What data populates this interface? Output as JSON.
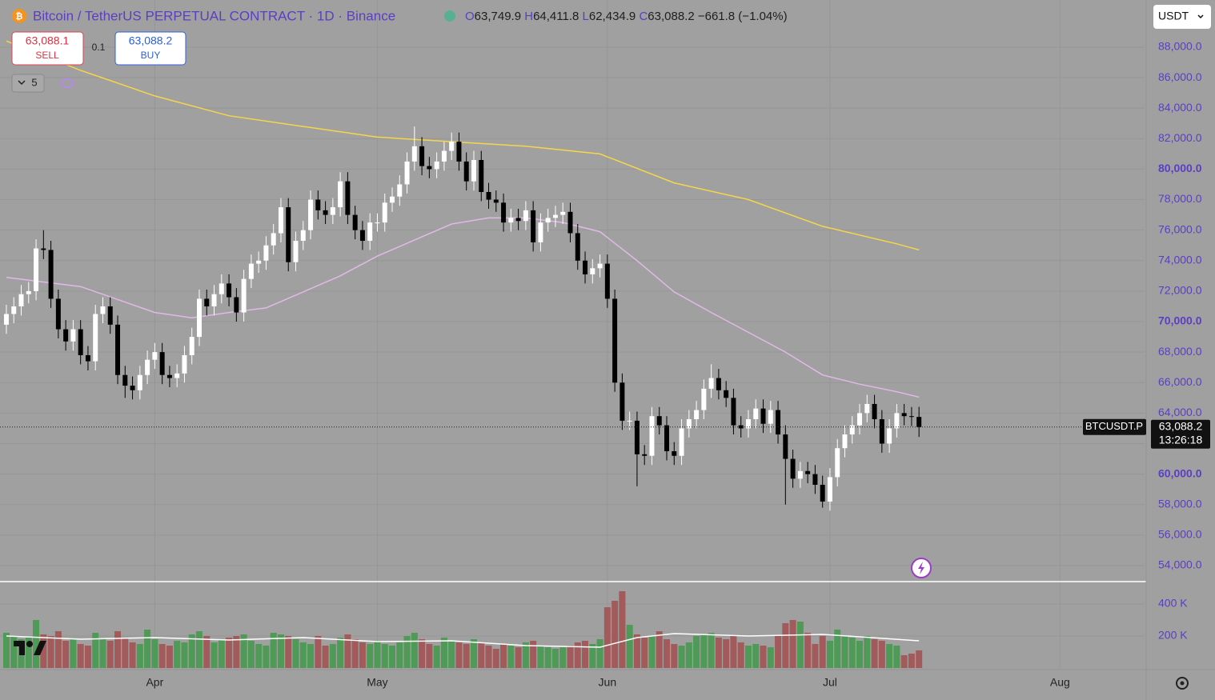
{
  "chart_data": {
    "type": "candlestick",
    "title": "Bitcoin / TetherUS PERPETUAL CONTRACT · 1D · Binance",
    "ohlc_legend": [
      {
        "label": "O",
        "value": "63,749.9"
      },
      {
        "label": "H",
        "value": "64,411.8"
      },
      {
        "label": "L",
        "value": "62,434.9"
      },
      {
        "label": "C",
        "value": "63,088.2"
      }
    ],
    "change_label": "−661.8 (−1.04%)",
    "sell": {
      "price": "63,088.1",
      "label": "SELL"
    },
    "spread": "0.1",
    "buy": {
      "price": "63,088.2",
      "label": "BUY"
    },
    "currency": "USDT",
    "indicator_count": "5",
    "symbol_label": "BTCUSDT.P",
    "last_price_label": "63,088.2",
    "countdown": "13:26:18",
    "colors": {
      "up": "#ffffff",
      "down": "#000000",
      "volume_up": "#4e9a56",
      "volume_down": "#a25a5a"
    },
    "xlim": [
      -0.86,
      153.4
    ],
    "xticks": [
      {
        "value": 20,
        "label": "Apr"
      },
      {
        "value": 50,
        "label": "May"
      },
      {
        "value": 81,
        "label": "Jun"
      },
      {
        "value": 111,
        "label": "Jul"
      },
      {
        "value": 142,
        "label": "Aug"
      }
    ],
    "ylim": [
      52950,
      90830
    ],
    "yticks": [
      {
        "value": 54000,
        "label": "54,000.0"
      },
      {
        "value": 56000,
        "label": "56,000.0"
      },
      {
        "value": 58000,
        "label": "58,000.0"
      },
      {
        "value": 60000,
        "label": "60,000.0"
      },
      {
        "value": 62000,
        "label": "62,000.0"
      },
      {
        "value": 64000,
        "label": "64,000.0"
      },
      {
        "value": 66000,
        "label": "66,000.0"
      },
      {
        "value": 68000,
        "label": "68,000.0"
      },
      {
        "value": 70000,
        "label": "70,000.0"
      },
      {
        "value": 72000,
        "label": "72,000.0"
      },
      {
        "value": 74000,
        "label": "74,000.0"
      },
      {
        "value": 76000,
        "label": "76,000.0"
      },
      {
        "value": 78000,
        "label": "78,000.0"
      },
      {
        "value": 80000,
        "label": "80,000.0"
      },
      {
        "value": 82000,
        "label": "82,000.0"
      },
      {
        "value": 84000,
        "label": "84,000.0"
      },
      {
        "value": 86000,
        "label": "86,000.0"
      },
      {
        "value": 88000,
        "label": "88,000.0"
      }
    ],
    "grid": true,
    "open": [
      69800,
      70500,
      71000,
      71800,
      72000,
      74800,
      74700,
      71500,
      69500,
      68700,
      69500,
      67800,
      67400,
      70500,
      71000,
      69800,
      66500,
      65800,
      65500,
      66500,
      67500,
      68000,
      66500,
      66300,
      66600,
      67800,
      69000,
      71500,
      71000,
      71800,
      72500,
      71600,
      70600,
      72800,
      73800,
      74000,
      75000,
      75800,
      77500,
      73900,
      75300,
      76000,
      78000,
      77300,
      77000,
      77500,
      79200,
      77000,
      76000,
      75300,
      76500,
      76500,
      77800,
      78200,
      79000,
      80500,
      81500,
      80200,
      80000,
      80500,
      81200,
      81800,
      80500,
      79200,
      80600,
      78500,
      78000,
      77800,
      76500,
      76800,
      76600,
      77300,
      75200,
      76500,
      76800,
      77000,
      77200,
      75800,
      74000,
      73100,
      73500,
      73800,
      71500,
      66000,
      63500,
      63500,
      61300,
      61200,
      63800,
      63200,
      61500,
      61200,
      63000,
      63600,
      64200,
      65600,
      66300,
      65500,
      65000,
      63200,
      63000,
      63600,
      64300,
      63300,
      64200,
      62600,
      61000,
      59700,
      60200,
      60000,
      59300,
      58200,
      59800,
      61700,
      62600,
      63200,
      64000,
      64600,
      63600,
      62000,
      63000,
      64000,
      63800,
      63749.9
    ],
    "high": [
      71100,
      71600,
      72400,
      72600,
      75400,
      76000,
      75300,
      72100,
      70100,
      70100,
      70100,
      68400,
      71100,
      71600,
      71600,
      70400,
      67100,
      66400,
      67100,
      68100,
      68600,
      68600,
      67100,
      67200,
      68400,
      69600,
      72100,
      72100,
      72400,
      73100,
      73100,
      72200,
      73400,
      74400,
      74600,
      75600,
      76400,
      78100,
      78100,
      75900,
      76600,
      78600,
      78600,
      77900,
      78100,
      79800,
      79800,
      77600,
      76600,
      77100,
      77100,
      78400,
      78800,
      79600,
      81100,
      82800,
      82100,
      80800,
      81100,
      81800,
      82400,
      82400,
      81100,
      81200,
      81200,
      79100,
      78600,
      78400,
      77400,
      77400,
      77900,
      77900,
      77100,
      77400,
      77600,
      77800,
      77800,
      76400,
      74600,
      74100,
      74400,
      74400,
      72100,
      66600,
      64100,
      64100,
      61900,
      64400,
      64400,
      63800,
      62100,
      63600,
      64200,
      64800,
      66200,
      67200,
      66900,
      66100,
      65600,
      63800,
      64200,
      64900,
      64900,
      64800,
      64800,
      63200,
      61600,
      60800,
      60800,
      60600,
      59900,
      60400,
      62300,
      63200,
      63800,
      64600,
      65200,
      65200,
      64200,
      63600,
      64600,
      64600,
      64400,
      64411.8
    ],
    "low": [
      69200,
      69900,
      70400,
      71200,
      71400,
      74100,
      70900,
      68900,
      68100,
      68100,
      67200,
      66800,
      66800,
      69900,
      69200,
      65900,
      65000,
      64900,
      64900,
      65900,
      66900,
      65900,
      65700,
      65700,
      66000,
      67200,
      68400,
      70400,
      70400,
      71200,
      71000,
      70000,
      70000,
      72200,
      73200,
      73400,
      74400,
      75200,
      73300,
      73300,
      74700,
      75400,
      76700,
      76400,
      76400,
      76900,
      76400,
      75400,
      74700,
      74700,
      75900,
      75900,
      77200,
      77600,
      78400,
      79900,
      79600,
      79400,
      79400,
      79900,
      80600,
      79900,
      78600,
      78600,
      77900,
      77400,
      77200,
      75900,
      75900,
      76000,
      76000,
      74600,
      74600,
      75900,
      76200,
      76400,
      75200,
      73400,
      72500,
      72500,
      72900,
      70900,
      65400,
      62900,
      62900,
      59200,
      60600,
      60600,
      62600,
      60900,
      60600,
      60600,
      62400,
      63000,
      63600,
      65000,
      64900,
      64400,
      62600,
      62400,
      62400,
      63000,
      62700,
      62700,
      62000,
      58000,
      59100,
      59100,
      59400,
      58700,
      57800,
      57600,
      59200,
      61100,
      62000,
      62600,
      63400,
      63000,
      61400,
      61400,
      62400,
      63200,
      63150,
      62434.9
    ],
    "close": [
      70500,
      71000,
      71800,
      72000,
      74800,
      74700,
      71500,
      69500,
      68700,
      69500,
      67800,
      67400,
      70500,
      71000,
      69800,
      66500,
      65800,
      65500,
      66500,
      67500,
      68000,
      66500,
      66300,
      66600,
      67800,
      69000,
      71500,
      71000,
      71800,
      72500,
      71600,
      70600,
      72800,
      73800,
      74000,
      75000,
      75800,
      77500,
      73900,
      75300,
      76000,
      78000,
      77300,
      77000,
      77500,
      79200,
      77000,
      76000,
      75300,
      76500,
      76500,
      77800,
      78200,
      79000,
      80500,
      81500,
      80200,
      80000,
      80500,
      81200,
      81800,
      80500,
      79200,
      80600,
      78500,
      78000,
      77800,
      76500,
      76800,
      76600,
      77300,
      75200,
      76500,
      76800,
      77000,
      77200,
      75800,
      74000,
      73100,
      73500,
      73800,
      71500,
      66000,
      63500,
      63500,
      61300,
      61200,
      63800,
      63200,
      61500,
      61200,
      63000,
      63600,
      64200,
      65600,
      66300,
      65500,
      65000,
      63200,
      63000,
      63600,
      64300,
      63300,
      64200,
      62600,
      61000,
      59700,
      60200,
      60000,
      59300,
      58200,
      59800,
      61700,
      62600,
      63200,
      64000,
      64600,
      63600,
      62000,
      63000,
      64000,
      63800,
      63750,
      63088.2
    ],
    "lines": [
      {
        "color": "#f5d64a",
        "x": [
          0,
          10,
          20,
          30,
          40,
          50,
          60,
          70,
          80,
          90,
          100,
          110,
          120,
          123
        ],
        "values": [
          88400,
          86480,
          84800,
          83500,
          82800,
          82100,
          81800,
          81500,
          81000,
          79100,
          78000,
          76250,
          75100,
          74700
        ]
      },
      {
        "color": "#e2b8e8",
        "x": [
          0,
          10,
          20,
          25,
          30,
          35,
          40,
          45,
          50,
          55,
          60,
          65,
          70,
          75,
          80,
          85,
          90,
          95,
          100,
          105,
          110,
          115,
          120,
          123
        ],
        "values": [
          72900,
          72300,
          70600,
          70250,
          70600,
          70900,
          71950,
          73000,
          74300,
          75350,
          76400,
          76800,
          76800,
          76500,
          75900,
          74000,
          71950,
          70600,
          69300,
          68000,
          66500,
          65900,
          65400,
          65050
        ]
      }
    ],
    "volume": {
      "ylim": [
        0,
        535000
      ],
      "yticks": [
        {
          "value": 200000,
          "label": "200 K"
        },
        {
          "value": 400000,
          "label": "400 K"
        }
      ],
      "values": [
        220000,
        200000,
        180000,
        190000,
        300000,
        210000,
        200000,
        230000,
        170000,
        180000,
        150000,
        140000,
        220000,
        180000,
        170000,
        230000,
        190000,
        160000,
        150000,
        240000,
        180000,
        150000,
        140000,
        170000,
        160000,
        210000,
        230000,
        200000,
        160000,
        180000,
        190000,
        200000,
        210000,
        170000,
        150000,
        140000,
        220000,
        210000,
        200000,
        180000,
        160000,
        150000,
        200000,
        140000,
        150000,
        190000,
        210000,
        180000,
        160000,
        150000,
        170000,
        150000,
        140000,
        160000,
        200000,
        220000,
        180000,
        150000,
        140000,
        190000,
        170000,
        160000,
        150000,
        180000,
        160000,
        140000,
        120000,
        150000,
        140000,
        130000,
        160000,
        170000,
        140000,
        130000,
        120000,
        130000,
        140000,
        160000,
        170000,
        150000,
        180000,
        380000,
        420000,
        480000,
        270000,
        210000,
        190000,
        200000,
        230000,
        180000,
        150000,
        140000,
        160000,
        200000,
        210000,
        220000,
        190000,
        180000,
        200000,
        160000,
        140000,
        150000,
        140000,
        130000,
        200000,
        280000,
        300000,
        290000,
        220000,
        150000,
        200000,
        170000,
        240000,
        200000,
        190000,
        170000,
        200000,
        180000,
        170000,
        150000,
        140000,
        80000,
        90000,
        110000
      ],
      "ma": {
        "color": "#ffffff",
        "x": [
          0,
          10,
          20,
          30,
          40,
          50,
          60,
          70,
          80,
          85,
          90,
          100,
          110,
          115,
          123
        ],
        "values": [
          200000,
          180000,
          190000,
          175000,
          190000,
          165000,
          170000,
          140000,
          130000,
          190000,
          215000,
          200000,
          210000,
          195000,
          170000
        ]
      }
    }
  }
}
